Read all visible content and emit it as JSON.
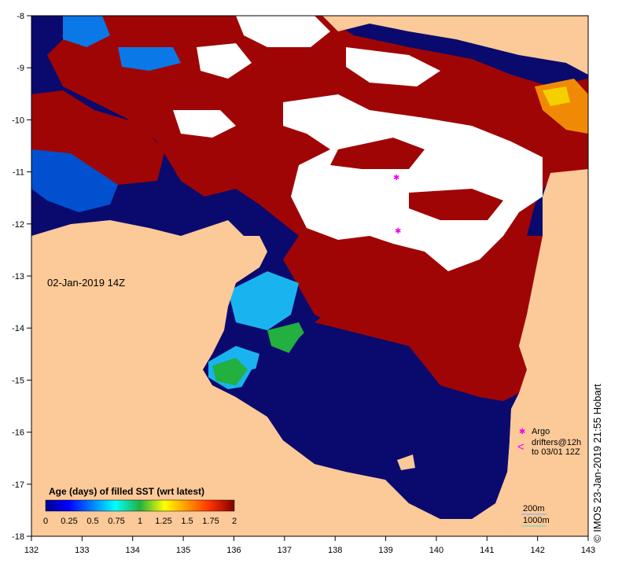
{
  "map": {
    "date_label": "02-Jan-2019 14Z",
    "credit": "©  IMOS 23-Jan-2019 21:55 Hobart",
    "x_ticks": [
      "132",
      "133",
      "134",
      "135",
      "136",
      "137",
      "138",
      "139",
      "140",
      "141",
      "142",
      "143"
    ],
    "y_ticks": [
      "-8",
      "-9",
      "-10",
      "-11",
      "-12",
      "-13",
      "-14",
      "-15",
      "-16",
      "-17",
      "-18"
    ],
    "colorbar": {
      "title": "Age (days) of filled SST (wrt latest)",
      "labels": [
        "0",
        "0.25",
        "0.5",
        "0.75",
        "1",
        "1.25",
        "1.5",
        "1.75",
        "2"
      ]
    },
    "legend": {
      "argo_label": "Argo",
      "drifters_label": "drifters@12h",
      "drifters_to": "to 03/01 12Z",
      "argo_symbol": "✱",
      "drifter_symbol": "<"
    },
    "depth_legend": {
      "contour_200": "200m",
      "contour_1000": "1000m"
    },
    "colors": {
      "land": "#fcc998",
      "no_data": "#ffffff",
      "age_0": "#0a0a6e",
      "age_max": "#a00505",
      "contour_200": "#6fb0ff",
      "contour_1000": "#4fe0c0",
      "argo": "#ee00ee"
    }
  }
}
